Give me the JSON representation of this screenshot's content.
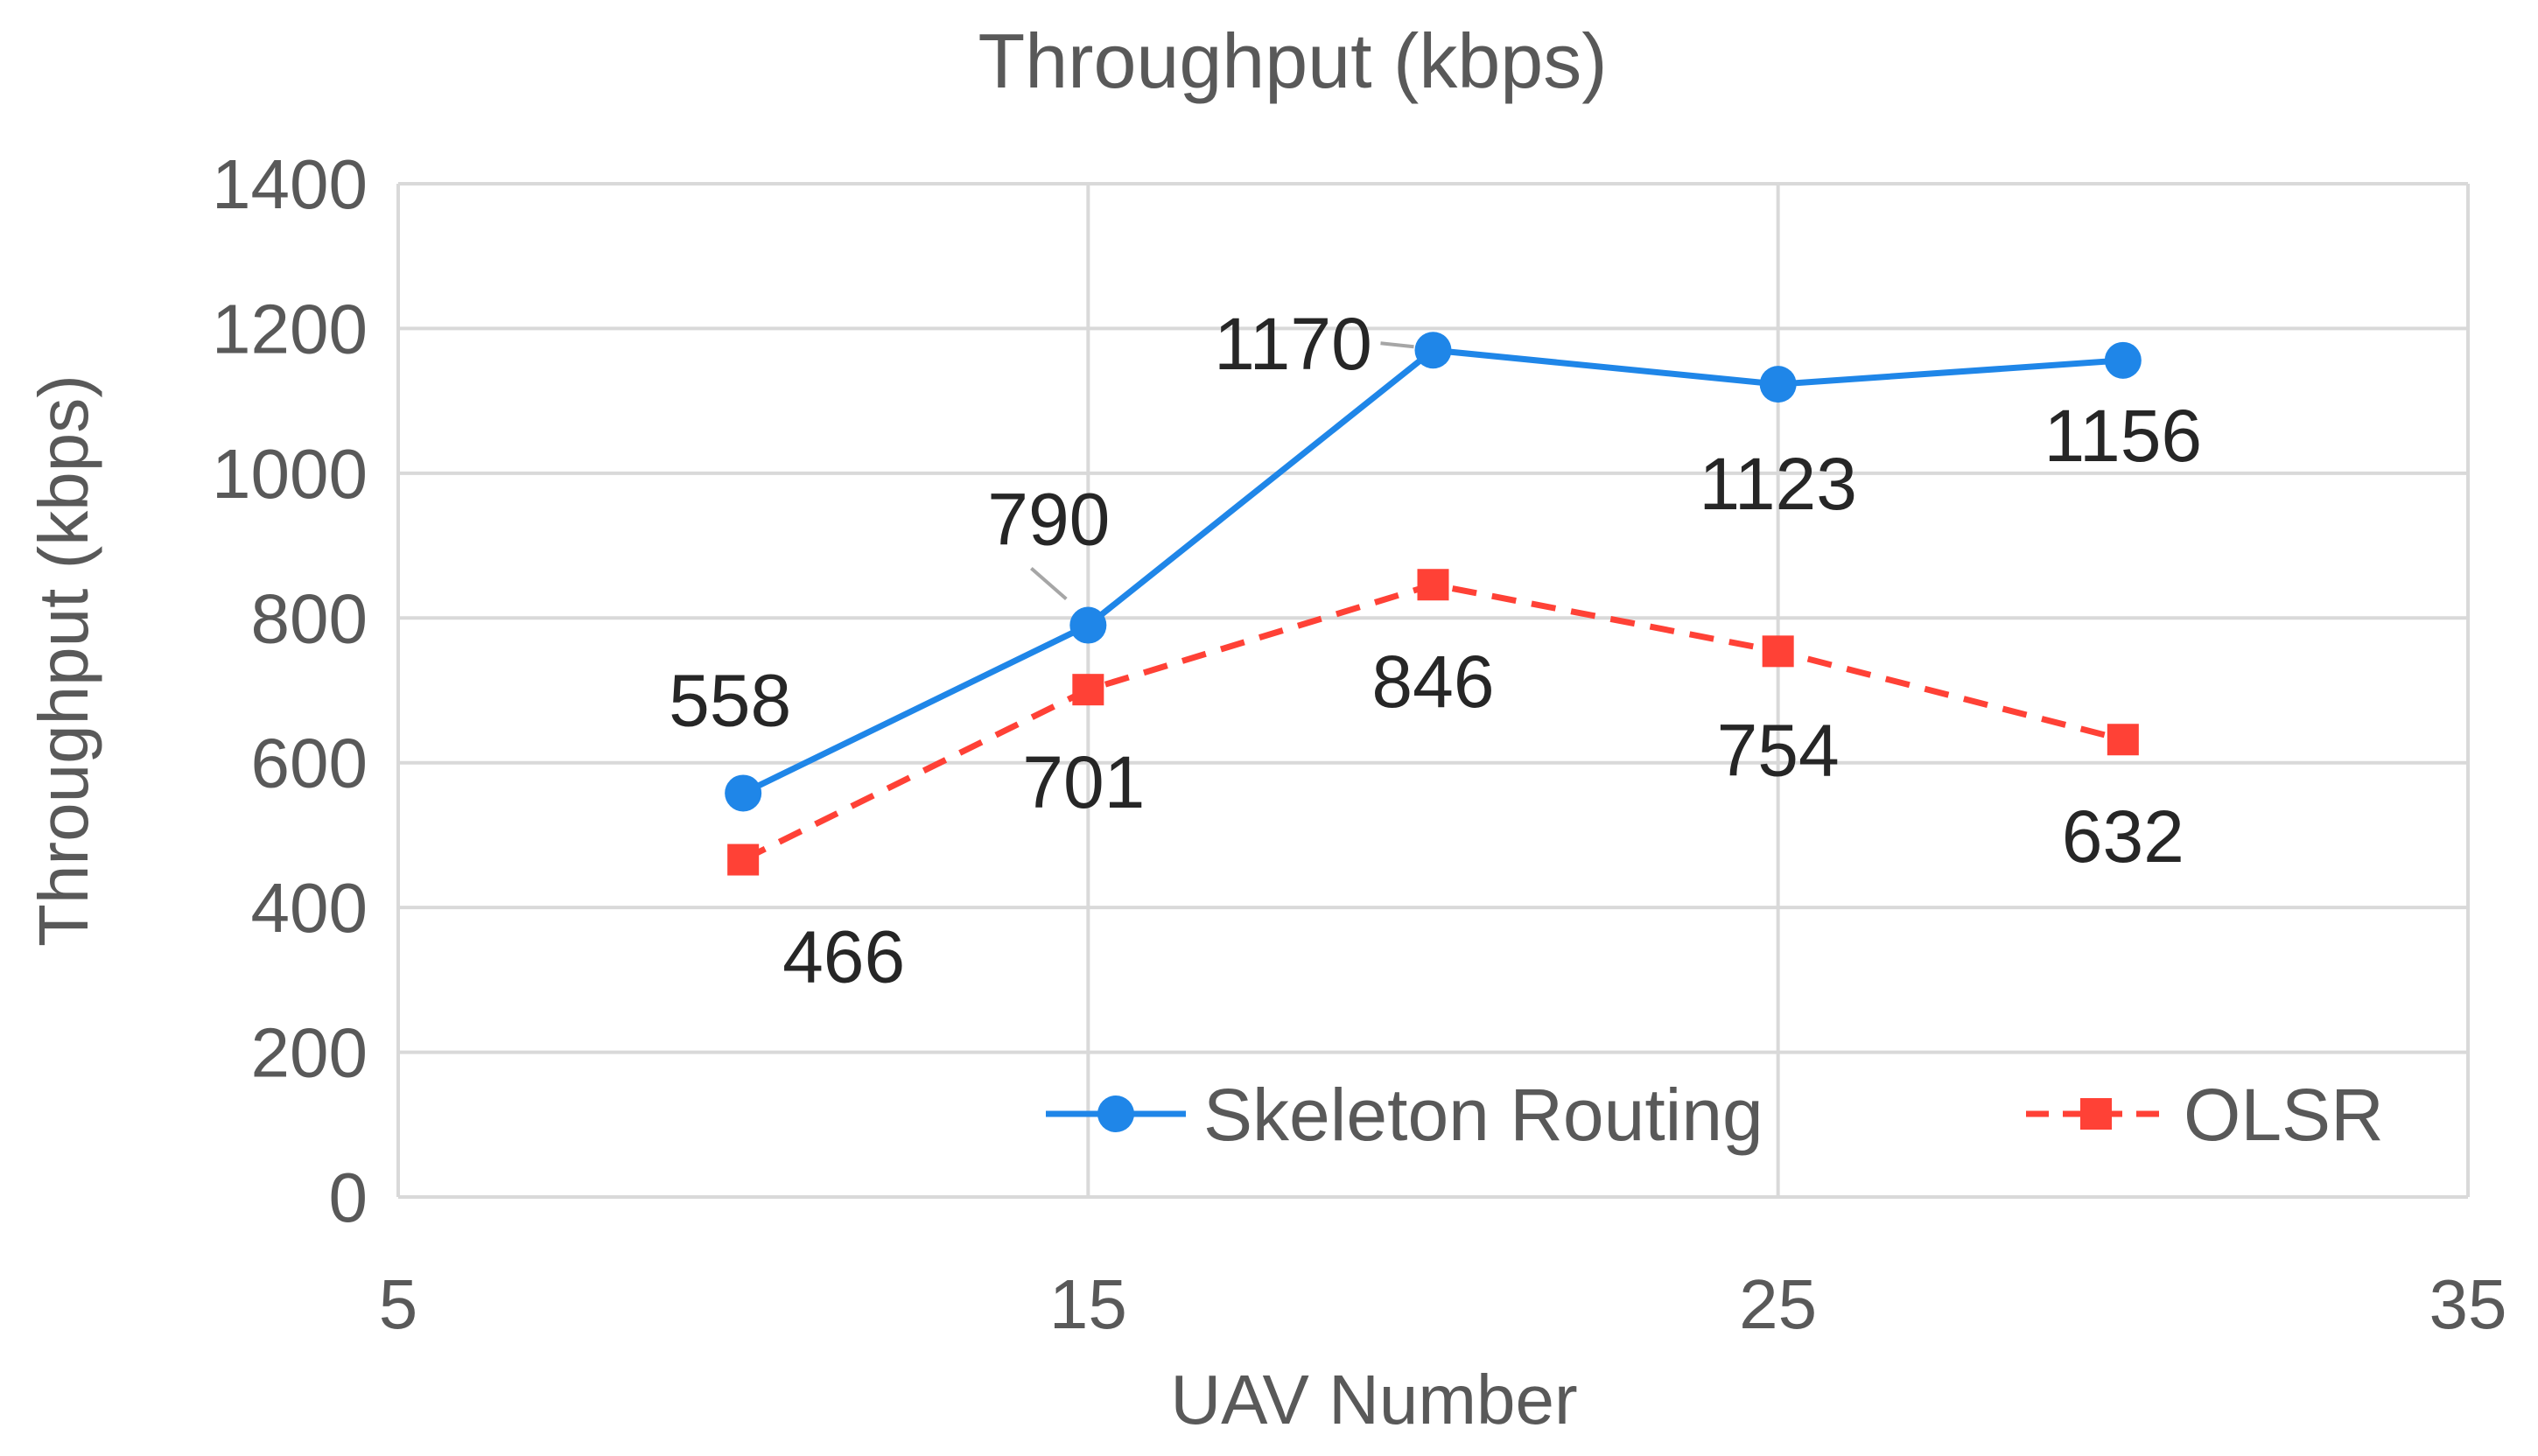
{
  "chart_data": {
    "type": "scatter",
    "title": "Throughput (kbps)",
    "xlabel": "UAV Number",
    "ylabel": "Throughput (kbps)",
    "xlim": [
      5,
      35
    ],
    "ylim": [
      0,
      1400
    ],
    "x_ticks": [
      "5",
      "15",
      "25",
      "35"
    ],
    "y_ticks": [
      "0",
      "200",
      "400",
      "600",
      "800",
      "1000",
      "1200",
      "1400"
    ],
    "grid": true,
    "legend_position": "bottom-right",
    "series": [
      {
        "name": "Skeleton Routing",
        "color": "#1f86e8",
        "line_style": "solid",
        "marker": "circle",
        "x": [
          10,
          15,
          20,
          25,
          30
        ],
        "y": [
          558,
          790,
          1170,
          1123,
          1156
        ],
        "labels": [
          "558",
          "790",
          "1170",
          "1123",
          "1156"
        ]
      },
      {
        "name": "OLSR",
        "color": "#ff4136",
        "line_style": "dashed",
        "marker": "square",
        "x": [
          10,
          15,
          20,
          25,
          30
        ],
        "y": [
          466,
          701,
          846,
          754,
          632
        ],
        "labels": [
          "466",
          "701",
          "846",
          "754",
          "632"
        ]
      }
    ]
  }
}
